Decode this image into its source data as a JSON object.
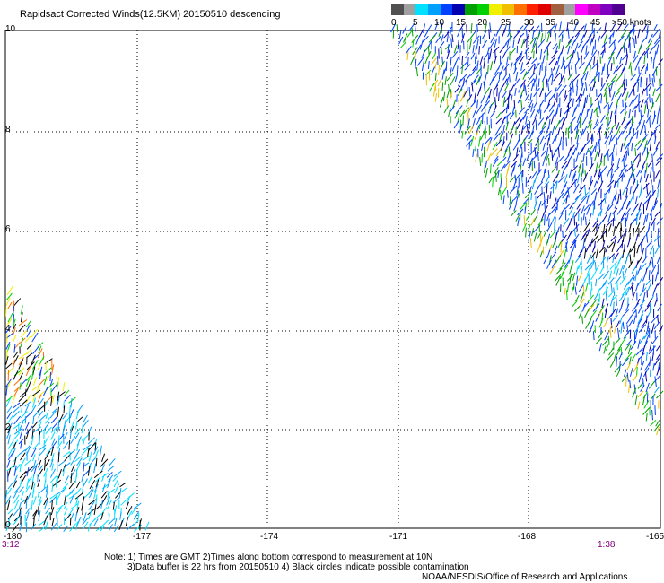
{
  "title": "Rapidsact Corrected Winds(12.5KM) 20150510 descending",
  "colorbar": {
    "colors": [
      "#505050",
      "#a0a0a0",
      "#00e0ff",
      "#00a0ff",
      "#0040ff",
      "#0000b0",
      "#00a000",
      "#00d000",
      "#f0f000",
      "#f0c000",
      "#ff7000",
      "#ff2000",
      "#e00000",
      "#a06040",
      "#a0a0a0",
      "#ff00ff",
      "#c000c0",
      "#8000c0",
      "#500090"
    ],
    "labels": [
      "0",
      "5",
      "10",
      "15",
      "20",
      "25",
      "30",
      "35",
      "40",
      "45",
      ">50 knots"
    ]
  },
  "map": {
    "lon_ticks": [
      "-180",
      "-177",
      "-174",
      "-171",
      "-168",
      "-165"
    ],
    "lat_ticks": [
      "10",
      "8",
      "6",
      "4",
      "2",
      "0"
    ],
    "grid": true,
    "swaths": [
      "east-swath",
      "west-swath"
    ]
  },
  "times": {
    "left": "3:12",
    "right": "1:38"
  },
  "notes": {
    "line1": "Note: 1) Times are GMT 2)Times along bottom correspond to measurement at 10N",
    "line2": "3)Data buffer is 22 hrs from 20150510 4) Black circles indicate possible contamination",
    "credit": "NOAA/NESDIS/Office of Research and Applications"
  }
}
